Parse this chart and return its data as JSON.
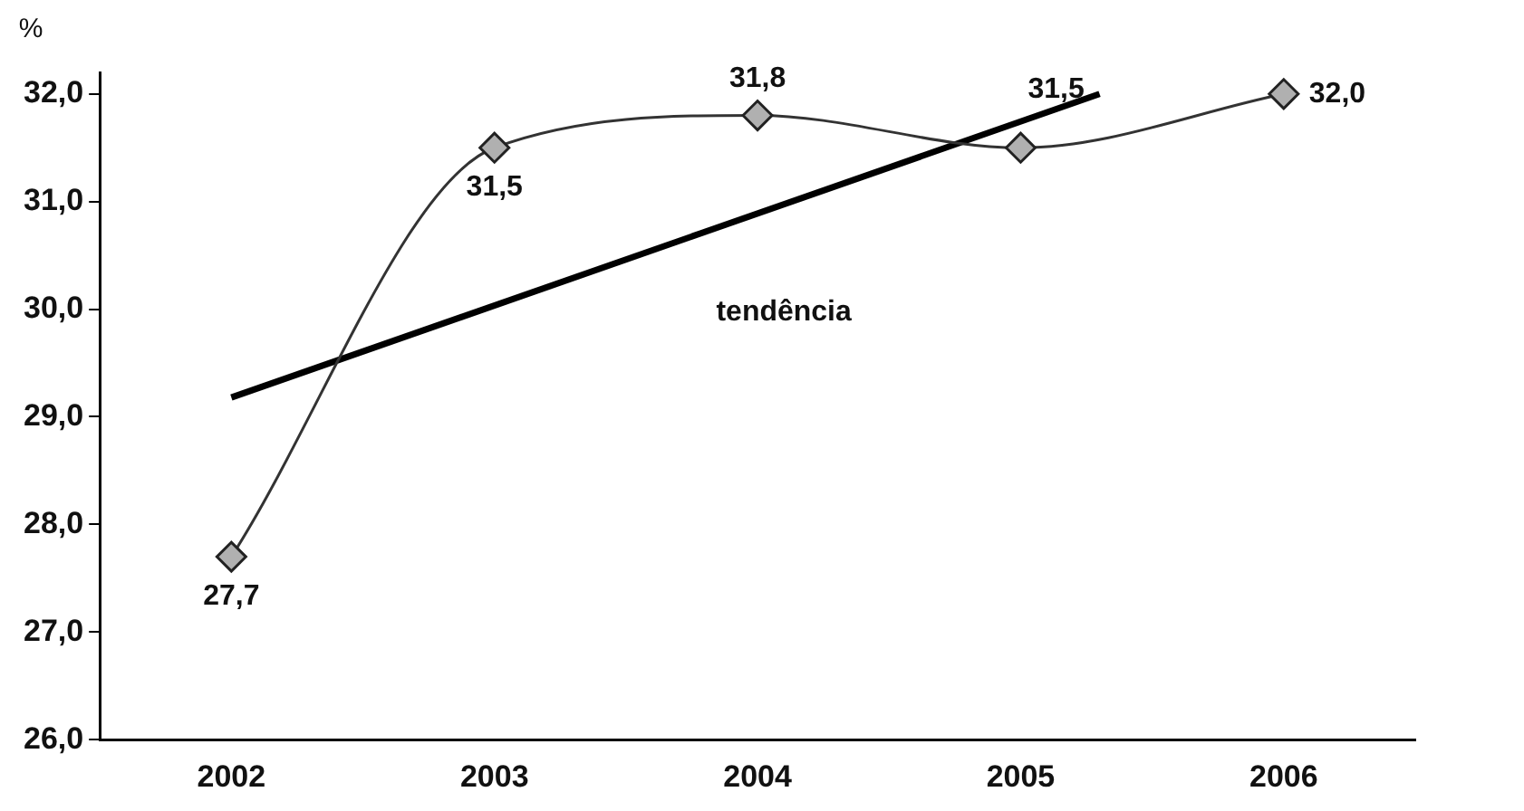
{
  "chart_data": {
    "type": "line",
    "ylabel": "%",
    "x": [
      2002,
      2003,
      2004,
      2005,
      2006
    ],
    "xlim": [
      2001.5,
      2006.5
    ],
    "xticks": [
      2002,
      2003,
      2004,
      2005,
      2006
    ],
    "ylim": [
      26,
      32.2
    ],
    "yticks": [
      {
        "value": 26,
        "label": "26,0"
      },
      {
        "value": 27,
        "label": "27,0"
      },
      {
        "value": 28,
        "label": "28,0"
      },
      {
        "value": 29,
        "label": "29,0"
      },
      {
        "value": 30,
        "label": "30,0"
      },
      {
        "value": 31,
        "label": "31,0"
      },
      {
        "value": 32,
        "label": "32,0"
      }
    ],
    "series": [
      {
        "color": "#333333",
        "values": [
          27.7,
          31.5,
          31.8,
          31.5,
          32.0
        ],
        "value_labels": [
          "27,7",
          "31,5",
          "31,8",
          "31,5",
          "32,0"
        ],
        "marker": "diamond"
      },
      {
        "type": "line",
        "color": "#000000",
        "x": [
          2002,
          2005.3
        ],
        "values": [
          29.18,
          32.0
        ],
        "marker": "none"
      }
    ],
    "annotations": [
      "tendência"
    ],
    "grid": false,
    "legend": false
  }
}
